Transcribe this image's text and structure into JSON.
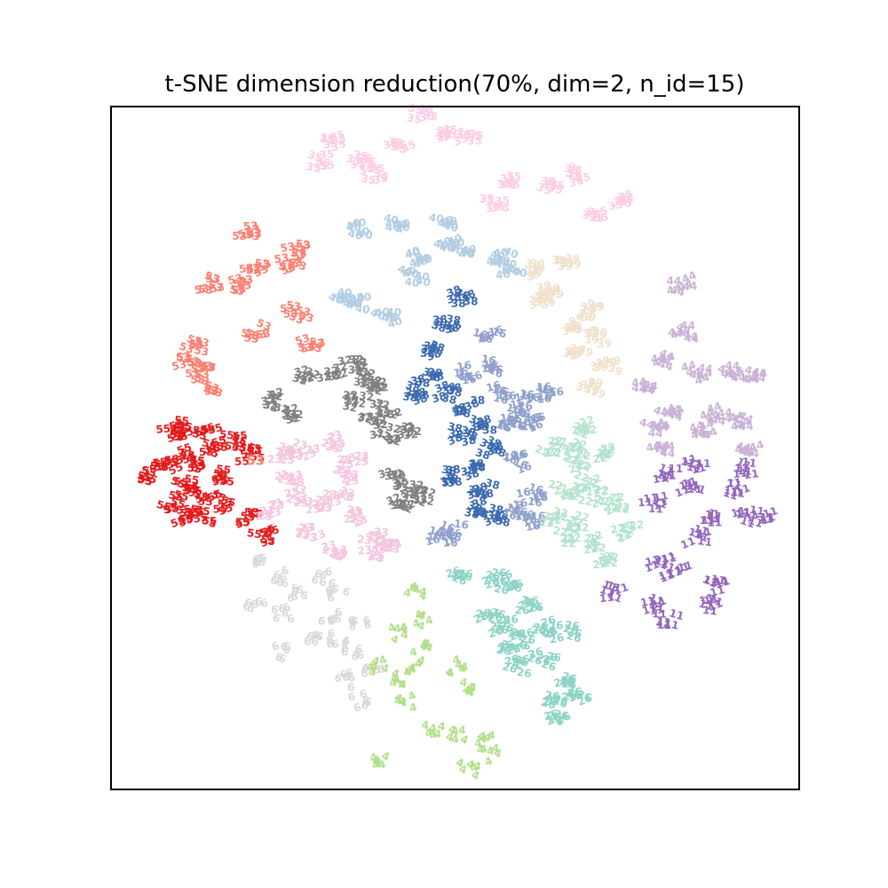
{
  "chart_data": {
    "type": "scatter",
    "title": "t-SNE dimension reduction(70%, dim=2, n_id=15)",
    "xlabel": "",
    "ylabel": "",
    "xlim": [
      0,
      100
    ],
    "ylim": [
      0,
      100
    ],
    "grid": false,
    "legend": "none",
    "series": [
      {
        "label": "35",
        "color": "#fccde5",
        "points": [
          [
            45,
            99
          ],
          [
            32,
            95
          ],
          [
            36,
            92
          ],
          [
            42,
            94
          ],
          [
            48,
            96
          ],
          [
            52,
            96
          ],
          [
            56,
            86
          ],
          [
            58,
            89
          ],
          [
            64,
            88
          ],
          [
            68,
            90
          ],
          [
            74,
            86
          ],
          [
            70,
            84
          ],
          [
            30,
            92
          ],
          [
            38,
            90
          ]
        ]
      },
      {
        "label": "40",
        "color": "#b3cde3",
        "points": [
          [
            36,
            82
          ],
          [
            42,
            83
          ],
          [
            48,
            83
          ],
          [
            51,
            79
          ],
          [
            58,
            76
          ],
          [
            44,
            75
          ],
          [
            45,
            78
          ],
          [
            36,
            71
          ],
          [
            40,
            69
          ],
          [
            34,
            72
          ],
          [
            49,
            80
          ],
          [
            57,
            78
          ]
        ]
      },
      {
        "label": "53",
        "color": "#fb8072",
        "points": [
          [
            20,
            82
          ],
          [
            21,
            76
          ],
          [
            26,
            77
          ],
          [
            27,
            79
          ],
          [
            14,
            74
          ],
          [
            19,
            74
          ],
          [
            27,
            70
          ],
          [
            21,
            67
          ],
          [
            12,
            65
          ],
          [
            13,
            61
          ],
          [
            11,
            63
          ],
          [
            29,
            65
          ],
          [
            14,
            59
          ]
        ]
      },
      {
        "label": "39",
        "color": "#f0e1cc",
        "points": [
          [
            62,
            76
          ],
          [
            66,
            77
          ],
          [
            63,
            72
          ],
          [
            67,
            68
          ],
          [
            71,
            66
          ],
          [
            70,
            70
          ],
          [
            68,
            64
          ],
          [
            72,
            62
          ],
          [
            70,
            59
          ],
          [
            64,
            73
          ]
        ]
      },
      {
        "label": "44",
        "color": "#cab2d6",
        "points": [
          [
            83,
            74
          ],
          [
            83,
            67
          ],
          [
            80,
            63
          ],
          [
            85,
            61
          ],
          [
            78,
            59
          ],
          [
            90,
            61
          ],
          [
            94,
            61
          ],
          [
            81,
            55
          ],
          [
            79,
            53
          ],
          [
            88,
            55
          ],
          [
            91,
            54
          ],
          [
            93,
            50
          ],
          [
            80,
            50
          ],
          [
            86,
            53
          ]
        ]
      },
      {
        "label": "38",
        "color": "#3a6ab0",
        "points": [
          [
            51,
            72
          ],
          [
            49,
            68
          ],
          [
            47,
            64
          ],
          [
            46,
            60
          ],
          [
            44,
            58
          ],
          [
            49,
            58
          ],
          [
            52,
            56
          ],
          [
            54,
            53
          ],
          [
            51,
            52
          ],
          [
            55,
            50
          ],
          [
            53,
            47
          ],
          [
            50,
            46
          ],
          [
            54,
            44
          ],
          [
            56,
            40
          ],
          [
            53,
            41
          ]
        ]
      },
      {
        "label": "16",
        "color": "#8fa0cc",
        "points": [
          [
            55,
            67
          ],
          [
            52,
            61
          ],
          [
            55,
            62
          ],
          [
            57,
            58
          ],
          [
            59,
            55
          ],
          [
            60,
            57
          ],
          [
            58,
            53
          ],
          [
            64,
            58
          ],
          [
            61,
            54
          ],
          [
            59,
            48
          ],
          [
            61,
            43
          ],
          [
            59,
            41
          ],
          [
            48,
            37
          ],
          [
            50,
            38
          ],
          [
            61,
            39
          ]
        ]
      },
      {
        "label": "32",
        "color": "#808080",
        "points": [
          [
            28,
            61
          ],
          [
            32,
            61
          ],
          [
            35,
            62
          ],
          [
            37,
            60
          ],
          [
            36,
            57
          ],
          [
            39,
            59
          ],
          [
            40,
            56
          ],
          [
            23,
            57
          ],
          [
            26,
            55
          ],
          [
            38,
            54
          ],
          [
            40,
            52
          ],
          [
            43,
            52
          ],
          [
            41,
            46
          ],
          [
            43,
            44
          ],
          [
            46,
            43
          ],
          [
            42,
            42
          ]
        ]
      },
      {
        "label": "55",
        "color": "#e41a1c",
        "points": [
          [
            9,
            52
          ],
          [
            10,
            53
          ],
          [
            14,
            52
          ],
          [
            15,
            50
          ],
          [
            10,
            49
          ],
          [
            12,
            48
          ],
          [
            8,
            47
          ],
          [
            16,
            46
          ],
          [
            11,
            45
          ],
          [
            13,
            43
          ],
          [
            16,
            42
          ],
          [
            6,
            46
          ],
          [
            13,
            40
          ],
          [
            9,
            42
          ],
          [
            20,
            40
          ],
          [
            11,
            40
          ],
          [
            22,
            37
          ],
          [
            20,
            49
          ],
          [
            18,
            51
          ]
        ]
      },
      {
        "label": "23",
        "color": "#f4c6e0",
        "points": [
          [
            25,
            49
          ],
          [
            28,
            50
          ],
          [
            33,
            51
          ],
          [
            26,
            46
          ],
          [
            35,
            48
          ],
          [
            34,
            46
          ],
          [
            33,
            43
          ],
          [
            27,
            43
          ],
          [
            30,
            42
          ],
          [
            23,
            41
          ],
          [
            36,
            40
          ],
          [
            38,
            37
          ],
          [
            40,
            36
          ],
          [
            29,
            38
          ],
          [
            32,
            35
          ],
          [
            38,
            35
          ]
        ]
      },
      {
        "label": "22",
        "color": "#b4e3cf",
        "points": [
          [
            69,
            53
          ],
          [
            67,
            50
          ],
          [
            64,
            50
          ],
          [
            68,
            48
          ],
          [
            72,
            49
          ],
          [
            69,
            45
          ],
          [
            66,
            44
          ],
          [
            73,
            42
          ],
          [
            70,
            43
          ],
          [
            64,
            40
          ],
          [
            68,
            39
          ],
          [
            66,
            37
          ],
          [
            70,
            36
          ],
          [
            75,
            38
          ],
          [
            72,
            33
          ]
        ]
      },
      {
        "label": "11",
        "color": "#9467bd",
        "points": [
          [
            81,
            46
          ],
          [
            85,
            48
          ],
          [
            92,
            47
          ],
          [
            91,
            44
          ],
          [
            84,
            44
          ],
          [
            79,
            42
          ],
          [
            87,
            40
          ],
          [
            92,
            40
          ],
          [
            95,
            40
          ],
          [
            85,
            37
          ],
          [
            80,
            33
          ],
          [
            82,
            32
          ],
          [
            88,
            30
          ],
          [
            87,
            27
          ],
          [
            81,
            25
          ],
          [
            73,
            29
          ],
          [
            79,
            27
          ]
        ]
      },
      {
        "label": "6",
        "color": "#d9d9d9",
        "points": [
          [
            22,
            33
          ],
          [
            25,
            31
          ],
          [
            27,
            29
          ],
          [
            21,
            27
          ],
          [
            25,
            26
          ],
          [
            31,
            31
          ],
          [
            33,
            29
          ],
          [
            32,
            25
          ],
          [
            33,
            22
          ],
          [
            29,
            22
          ],
          [
            25,
            20
          ],
          [
            36,
            24
          ],
          [
            35,
            20
          ],
          [
            38,
            18
          ],
          [
            34,
            16
          ],
          [
            36,
            13
          ]
        ]
      },
      {
        "label": "4",
        "color": "#b2df8a",
        "points": [
          [
            44,
            29
          ],
          [
            45,
            25
          ],
          [
            42,
            23
          ],
          [
            45,
            21
          ],
          [
            44,
            18
          ],
          [
            39,
            18
          ],
          [
            41,
            16
          ],
          [
            43,
            13
          ],
          [
            50,
            18
          ],
          [
            52,
            15
          ],
          [
            47,
            9
          ],
          [
            50,
            8
          ],
          [
            54,
            7
          ],
          [
            55,
            5
          ],
          [
            39,
            4
          ],
          [
            52,
            3
          ]
        ]
      },
      {
        "label": "26",
        "color": "#8dd3c7",
        "points": [
          [
            51,
            31
          ],
          [
            56,
            31
          ],
          [
            58,
            30
          ],
          [
            61,
            27
          ],
          [
            55,
            25
          ],
          [
            57,
            24
          ],
          [
            60,
            22
          ],
          [
            58,
            20
          ],
          [
            63,
            24
          ],
          [
            66,
            23
          ],
          [
            63,
            19
          ],
          [
            59,
            18
          ],
          [
            66,
            16
          ],
          [
            68,
            14
          ],
          [
            64,
            13
          ],
          [
            65,
            10
          ]
        ]
      }
    ]
  }
}
